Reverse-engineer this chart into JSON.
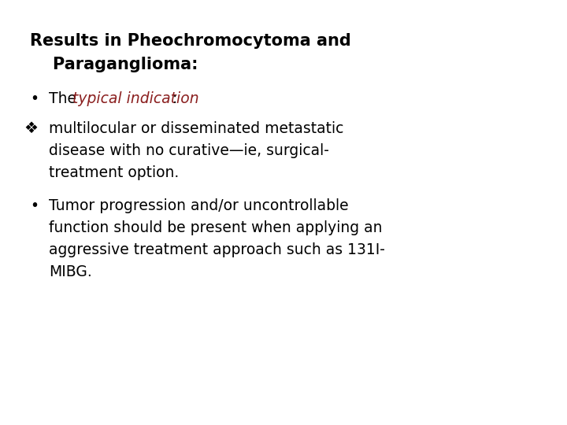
{
  "background_color": "#ffffff",
  "title_line1": "Results in Pheochromocytoma and",
  "title_line2": "    Paraganglioma:",
  "title_color": "#000000",
  "title_fontsize": 15,
  "body_fontsize": 13.5,
  "body_color": "#000000",
  "red_color": "#8B2020",
  "diamond_line1": "multilocular or disseminated metastatic",
  "diamond_line2": "disease with no curative—ie, surgical-",
  "diamond_line3": "treatment option.",
  "bullet2_line1": "Tumor progression and/or uncontrollable",
  "bullet2_line2": "function should be present when applying an",
  "bullet2_line3": "aggressive treatment approach such as 131I-",
  "bullet2_line4": "MIBG."
}
